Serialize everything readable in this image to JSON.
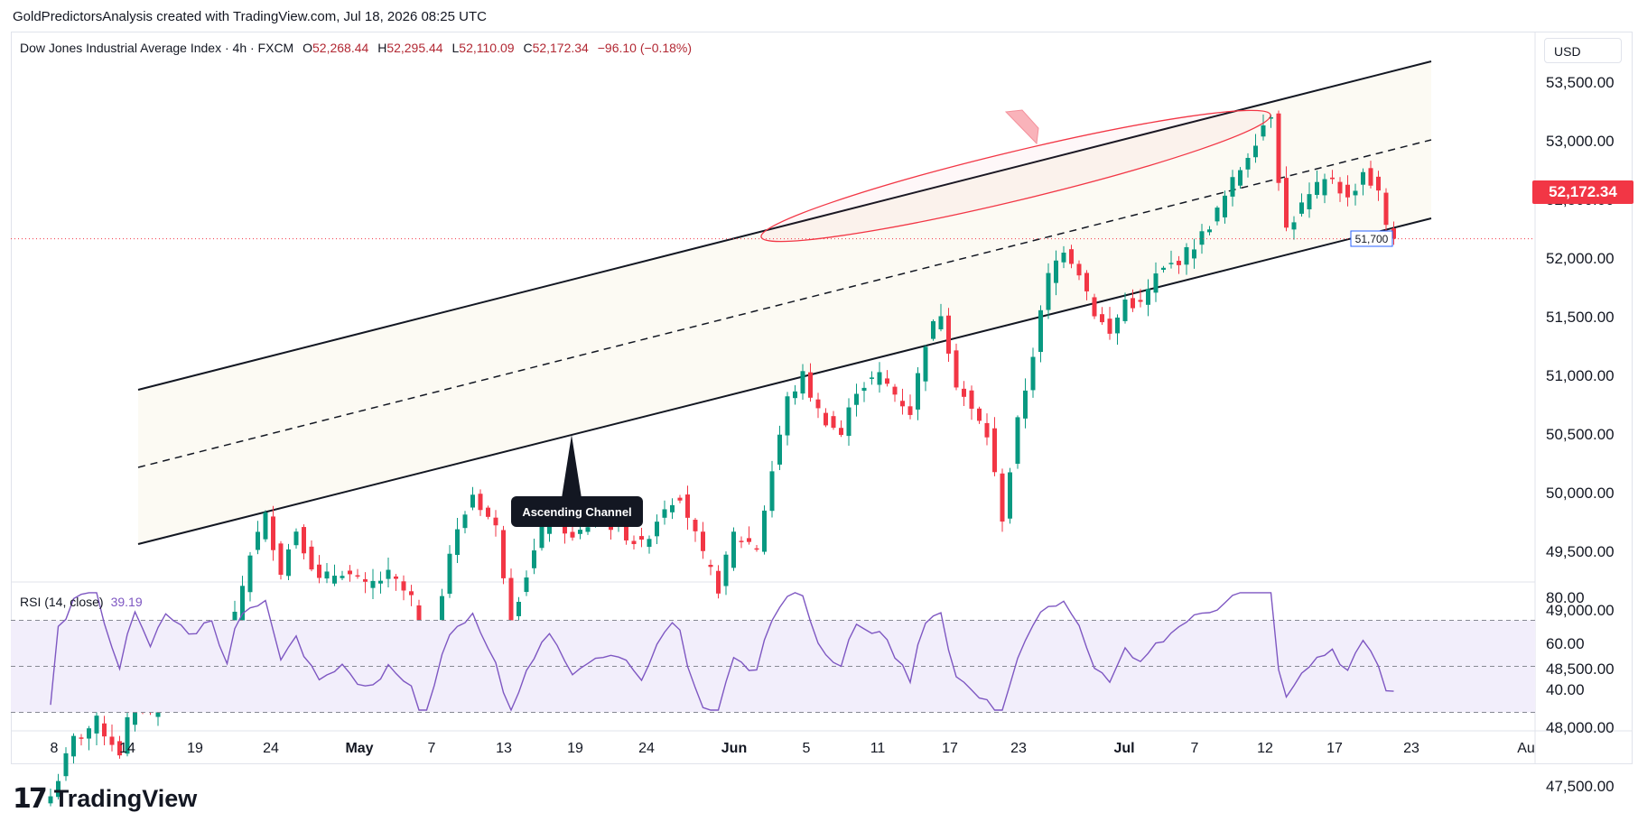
{
  "header": {
    "caption": "GoldPredictorsAnalysis created with TradingView.com, Jul 18, 2026 08:25 UTC"
  },
  "legend": {
    "symbol": "Dow Jones Industrial Average Index · 4h · FXCM",
    "o_label": "O",
    "o": "52,268.44",
    "h_label": "H",
    "h": "52,295.44",
    "l_label": "L",
    "l": "52,110.09",
    "c_label": "C",
    "c": "52,172.34",
    "change": "−96.10 (−0.18%)"
  },
  "currency": "USD",
  "last_price_label": "52,172.34",
  "channel_annotation": "Ascending Channel",
  "support_label": "51,700",
  "rsi": {
    "label": "RSI (14, close)",
    "value": "39.19"
  },
  "brand": {
    "name": "TradingView",
    "mark": "17"
  },
  "colors": {
    "up": "#089981",
    "down": "#f23645",
    "rsi": "#7e57c2",
    "channel_fill": "#fcfaf3",
    "ellipse": "#f23645"
  },
  "chart_data": [
    {
      "type": "candlestick",
      "title": "Dow Jones Industrial Average Index · 4h · FXCM",
      "x_tick_labels": [
        "8",
        "14",
        "19",
        "24",
        "May",
        "7",
        "13",
        "19",
        "24",
        "Jun",
        "5",
        "11",
        "17",
        "23",
        "Jul",
        "7",
        "12",
        "17",
        "23",
        "Au"
      ],
      "y_tick_labels": [
        "53,500.00",
        "53,000.00",
        "52,500.00",
        "52,000.00",
        "51,500.00",
        "51,000.00",
        "50,500.00",
        "50,000.00",
        "49,500.00",
        "49,000.00",
        "48,500.00",
        "48,000.00",
        "47,500.00"
      ],
      "ylim": [
        47300,
        53900
      ],
      "last_price": 52172.34,
      "close_path": [
        [
          0,
          47420
        ],
        [
          3,
          47900
        ],
        [
          6,
          48050
        ],
        [
          9,
          47800
        ],
        [
          11,
          48320
        ],
        [
          13,
          48150
        ],
        [
          15,
          48600
        ],
        [
          18,
          48500
        ],
        [
          21,
          48800
        ],
        [
          23,
          48650
        ],
        [
          26,
          49500
        ],
        [
          28,
          49800
        ],
        [
          30,
          49350
        ],
        [
          32,
          49700
        ],
        [
          35,
          49250
        ],
        [
          38,
          49350
        ],
        [
          41,
          49200
        ],
        [
          44,
          49300
        ],
        [
          47,
          49100
        ],
        [
          49,
          48550
        ],
        [
          52,
          49500
        ],
        [
          55,
          50000
        ],
        [
          58,
          49700
        ],
        [
          60,
          48950
        ],
        [
          63,
          49500
        ],
        [
          65,
          49900
        ],
        [
          68,
          49600
        ],
        [
          71,
          49800
        ],
        [
          74,
          49700
        ],
        [
          77,
          49550
        ],
        [
          80,
          49900
        ],
        [
          82,
          50000
        ],
        [
          85,
          49450
        ],
        [
          87,
          49200
        ],
        [
          89,
          49650
        ],
        [
          92,
          49550
        ],
        [
          94,
          50200
        ],
        [
          96,
          50800
        ],
        [
          98,
          51000
        ],
        [
          100,
          50700
        ],
        [
          103,
          50500
        ],
        [
          105,
          50900
        ],
        [
          108,
          51000
        ],
        [
          110,
          50850
        ],
        [
          112,
          50700
        ],
        [
          114,
          51300
        ],
        [
          116,
          51550
        ],
        [
          118,
          50950
        ],
        [
          120,
          50700
        ],
        [
          122,
          50500
        ],
        [
          124,
          49800
        ],
        [
          126,
          50600
        ],
        [
          128,
          51200
        ],
        [
          130,
          51850
        ],
        [
          132,
          52100
        ],
        [
          134,
          51900
        ],
        [
          136,
          51550
        ],
        [
          138,
          51350
        ],
        [
          140,
          51650
        ],
        [
          142,
          51600
        ],
        [
          144,
          51850
        ],
        [
          146,
          51950
        ],
        [
          148,
          52050
        ],
        [
          150,
          52200
        ],
        [
          152,
          52400
        ],
        [
          154,
          52650
        ],
        [
          156,
          52900
        ],
        [
          158,
          53150
        ],
        [
          159,
          53250
        ],
        [
          160,
          52700
        ],
        [
          161,
          52250
        ],
        [
          163,
          52450
        ],
        [
          165,
          52600
        ],
        [
          167,
          52700
        ],
        [
          169,
          52500
        ],
        [
          171,
          52750
        ],
        [
          173,
          52550
        ],
        [
          174,
          52300
        ],
        [
          175,
          52172.34
        ]
      ],
      "annotations": [
        "Ascending Channel",
        "51,700"
      ]
    },
    {
      "type": "line",
      "title": "RSI (14, close)",
      "y_tick_labels": [
        "80.00",
        "60.00",
        "40.00"
      ],
      "ylim": [
        28,
        84
      ],
      "levels": [
        30,
        50,
        70
      ],
      "series": [
        {
          "name": "RSI (14, close)",
          "last": 39.19
        }
      ]
    }
  ]
}
